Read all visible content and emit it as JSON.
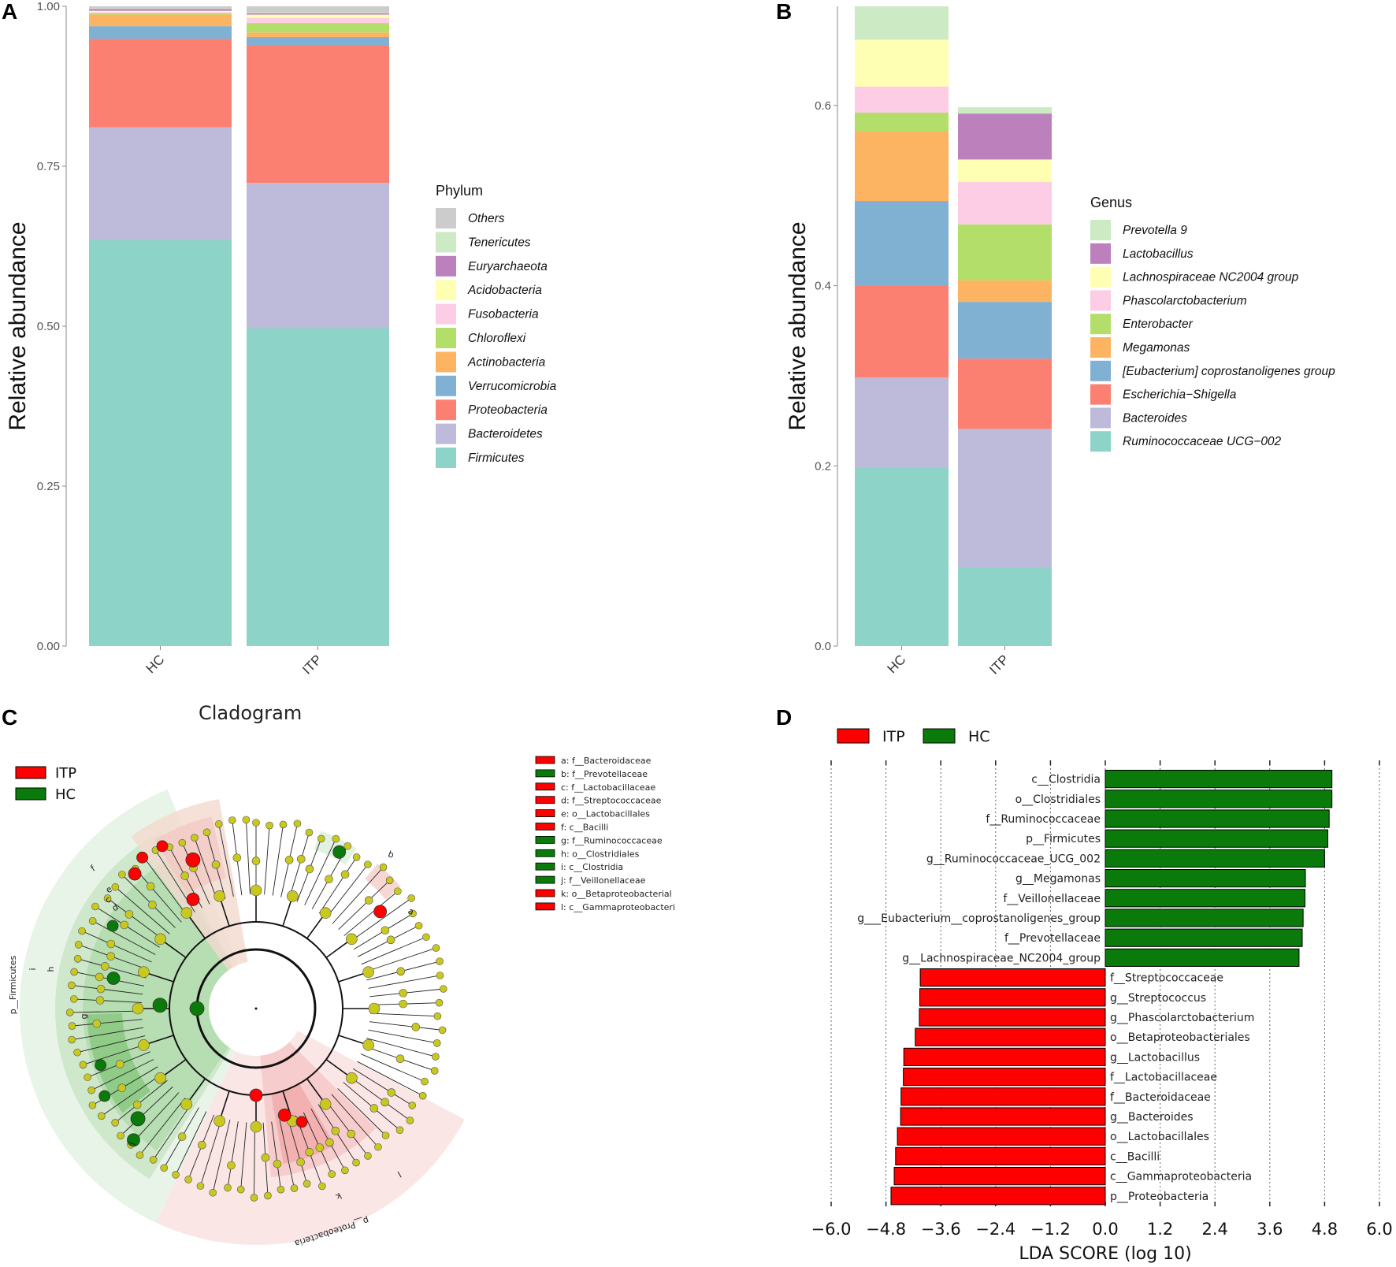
{
  "colors": {
    "Others": "#cccccc",
    "Tenericutes": "#ccebc5",
    "Euryarchaeota": "#bc80bd",
    "Acidobacteria": "#ffffb3",
    "Fusobacteria": "#fccde5",
    "Chloroflexi": "#b3de69",
    "Actinobacteria": "#fdb462",
    "Verrucomicrobia": "#80b1d3",
    "Proteobacteria": "#fb8072",
    "Bacteroidetes": "#bebada",
    "Firmicutes": "#8dd3c7",
    "itp_red": "#ff0000",
    "hc_green": "#0a7a0a",
    "node_yellow": "#c8c81e"
  },
  "panel_letters": {
    "a": "A",
    "b": "B",
    "c": "C",
    "d": "D"
  },
  "chart_data": [
    {
      "type": "bar",
      "stacked": true,
      "panel": "A",
      "categories": [
        "HC",
        "ITP"
      ],
      "ylabel": "Relative abundance",
      "ylim": [
        0,
        1.0
      ],
      "yticks": [
        "0.00",
        "0.25",
        "0.50",
        "0.75",
        "1.00"
      ],
      "grid": false,
      "legend_position": "right",
      "legend_title": "Phylum",
      "legend": [
        "Others",
        "Tenericutes",
        "Euryarchaeota",
        "Acidobacteria",
        "Fusobacteria",
        "Chloroflexi",
        "Actinobacteria",
        "Verrucomicrobia",
        "Proteobacteria",
        "Bacteroidetes",
        "Firmicutes"
      ],
      "series": [
        {
          "name": "Firmicutes",
          "values": [
            0.635,
            0.497
          ]
        },
        {
          "name": "Bacteroidetes",
          "values": [
            0.176,
            0.227
          ]
        },
        {
          "name": "Proteobacteria",
          "values": [
            0.138,
            0.215
          ]
        },
        {
          "name": "Verrucomicrobia",
          "values": [
            0.02,
            0.013
          ]
        },
        {
          "name": "Actinobacteria",
          "values": [
            0.018,
            0.007
          ]
        },
        {
          "name": "Chloroflexi",
          "values": [
            0.002,
            0.015
          ]
        },
        {
          "name": "Fusobacteria",
          "values": [
            0.002,
            0.008
          ]
        },
        {
          "name": "Acidobacteria",
          "values": [
            0.002,
            0.005
          ]
        },
        {
          "name": "Euryarchaeota",
          "values": [
            0.003,
            0.002
          ]
        },
        {
          "name": "Tenericutes",
          "values": [
            0.001,
            0.001
          ]
        },
        {
          "name": "Others",
          "values": [
            0.003,
            0.01
          ]
        }
      ]
    },
    {
      "type": "bar",
      "stacked": true,
      "panel": "B",
      "categories": [
        "HC",
        "ITP"
      ],
      "ylabel": "Relative abundance",
      "ylim": [
        0,
        0.71
      ],
      "yticks": [
        "0.0",
        "0.2",
        "0.4",
        "0.6"
      ],
      "grid": false,
      "legend_position": "right",
      "legend_title": "Genus",
      "legend": [
        "Prevotella 9",
        "Lactobacillus",
        "Lachnospiraceae NC2004 group",
        "Phascolarctobacterium",
        "Enterobacter",
        "Megamonas",
        "[Eubacterium] coprostanoligenes group",
        "Escherichia−Shigella",
        "Bacteroides",
        "Ruminococcaceae UCG−002"
      ],
      "series": [
        {
          "name": "Ruminococcaceae UCG−002",
          "values": [
            0.198,
            0.087
          ]
        },
        {
          "name": "Bacteroides",
          "values": [
            0.1,
            0.154
          ]
        },
        {
          "name": "Escherichia−Shigella",
          "values": [
            0.102,
            0.078
          ]
        },
        {
          "name": "[Eubacterium] coprostanoligenes group",
          "values": [
            0.094,
            0.063
          ]
        },
        {
          "name": "Megamonas",
          "values": [
            0.077,
            0.024
          ]
        },
        {
          "name": "Enterobacter",
          "values": [
            0.021,
            0.062
          ]
        },
        {
          "name": "Phascolarctobacterium",
          "values": [
            0.029,
            0.047
          ]
        },
        {
          "name": "Lachnospiraceae NC2004 group",
          "values": [
            0.052,
            0.025
          ]
        },
        {
          "name": "Lactobacillus",
          "values": [
            0.0,
            0.051
          ]
        },
        {
          "name": "Prevotella 9",
          "values": [
            0.037,
            0.007
          ]
        }
      ]
    },
    {
      "type": "bar",
      "orientation": "horizontal",
      "panel": "D",
      "xlabel": "LDA SCORE (log 10)",
      "xlim": [
        -6.0,
        6.0
      ],
      "xticks": [
        "−6.0",
        "−4.8",
        "−3.6",
        "−2.4",
        "−1.2",
        "0.0",
        "1.2",
        "2.4",
        "3.6",
        "4.8",
        "6.0"
      ],
      "legend": [
        "ITP",
        "HC"
      ],
      "categories": [
        "c__Clostridia",
        "o__Clostridiales",
        "f__Ruminococcaceae",
        "p__Firmicutes",
        "g__Ruminococcaceae_UCG_002",
        "g__Megamonas",
        "f__Veillonellaceae",
        "g___Eubacterium__coprostanoligenes_group",
        "f__Prevotellaceae",
        "g__Lachnospiraceae_NC2004_group",
        "f__Streptococcaceae",
        "g__Streptococcus",
        "g__Phascolarctobacterium",
        "o__Betaproteobacteriales",
        "g__Lactobacillus",
        "f__Lactobacillaceae",
        "f__Bacteroidaceae",
        "g__Bacteroides",
        "o__Lactobacillales",
        "c__Bacilli",
        "c__Gammaproteobacteria",
        "p__Proteobacteria"
      ],
      "values": [
        4.96,
        4.96,
        4.9,
        4.87,
        4.8,
        4.38,
        4.37,
        4.33,
        4.31,
        4.24,
        -4.05,
        -4.06,
        -4.07,
        -4.16,
        -4.41,
        -4.42,
        -4.47,
        -4.48,
        -4.55,
        -4.59,
        -4.62,
        -4.69
      ],
      "groups": [
        "HC",
        "HC",
        "HC",
        "HC",
        "HC",
        "HC",
        "HC",
        "HC",
        "HC",
        "HC",
        "ITP",
        "ITP",
        "ITP",
        "ITP",
        "ITP",
        "ITP",
        "ITP",
        "ITP",
        "ITP",
        "ITP",
        "ITP",
        "ITP"
      ]
    }
  ],
  "cladogram": {
    "title": "Cladogram",
    "legend": [
      {
        "label": "ITP",
        "group": "ITP"
      },
      {
        "label": "HC",
        "group": "HC"
      }
    ],
    "key": [
      {
        "text": "a: f__Bacteroidaceae",
        "group": "ITP"
      },
      {
        "text": "b: f__Prevotellaceae",
        "group": "HC"
      },
      {
        "text": "c: f__Lactobacillaceae",
        "group": "ITP"
      },
      {
        "text": "d: f__Streptococcaceae",
        "group": "ITP"
      },
      {
        "text": "e: o__Lactobacillales",
        "group": "ITP"
      },
      {
        "text": "f: c__Bacilli",
        "group": "ITP"
      },
      {
        "text": "g: f__Ruminococcaceae",
        "group": "HC"
      },
      {
        "text": "h: o__Clostridiales",
        "group": "HC"
      },
      {
        "text": "i: c__Clostridia",
        "group": "HC"
      },
      {
        "text": "j: f__Veillonellaceae",
        "group": "HC"
      },
      {
        "text": "k: o__Betaproteobacterial",
        "group": "ITP"
      },
      {
        "text": "l: c__Gammaproteobacteri",
        "group": "ITP"
      }
    ],
    "sector_labels": [
      "p__Firmicutes",
      "p__Proteobacteria",
      "i",
      "h",
      "g",
      "j",
      "f",
      "e",
      "c",
      "d",
      "a",
      "b",
      "k",
      "l"
    ]
  }
}
